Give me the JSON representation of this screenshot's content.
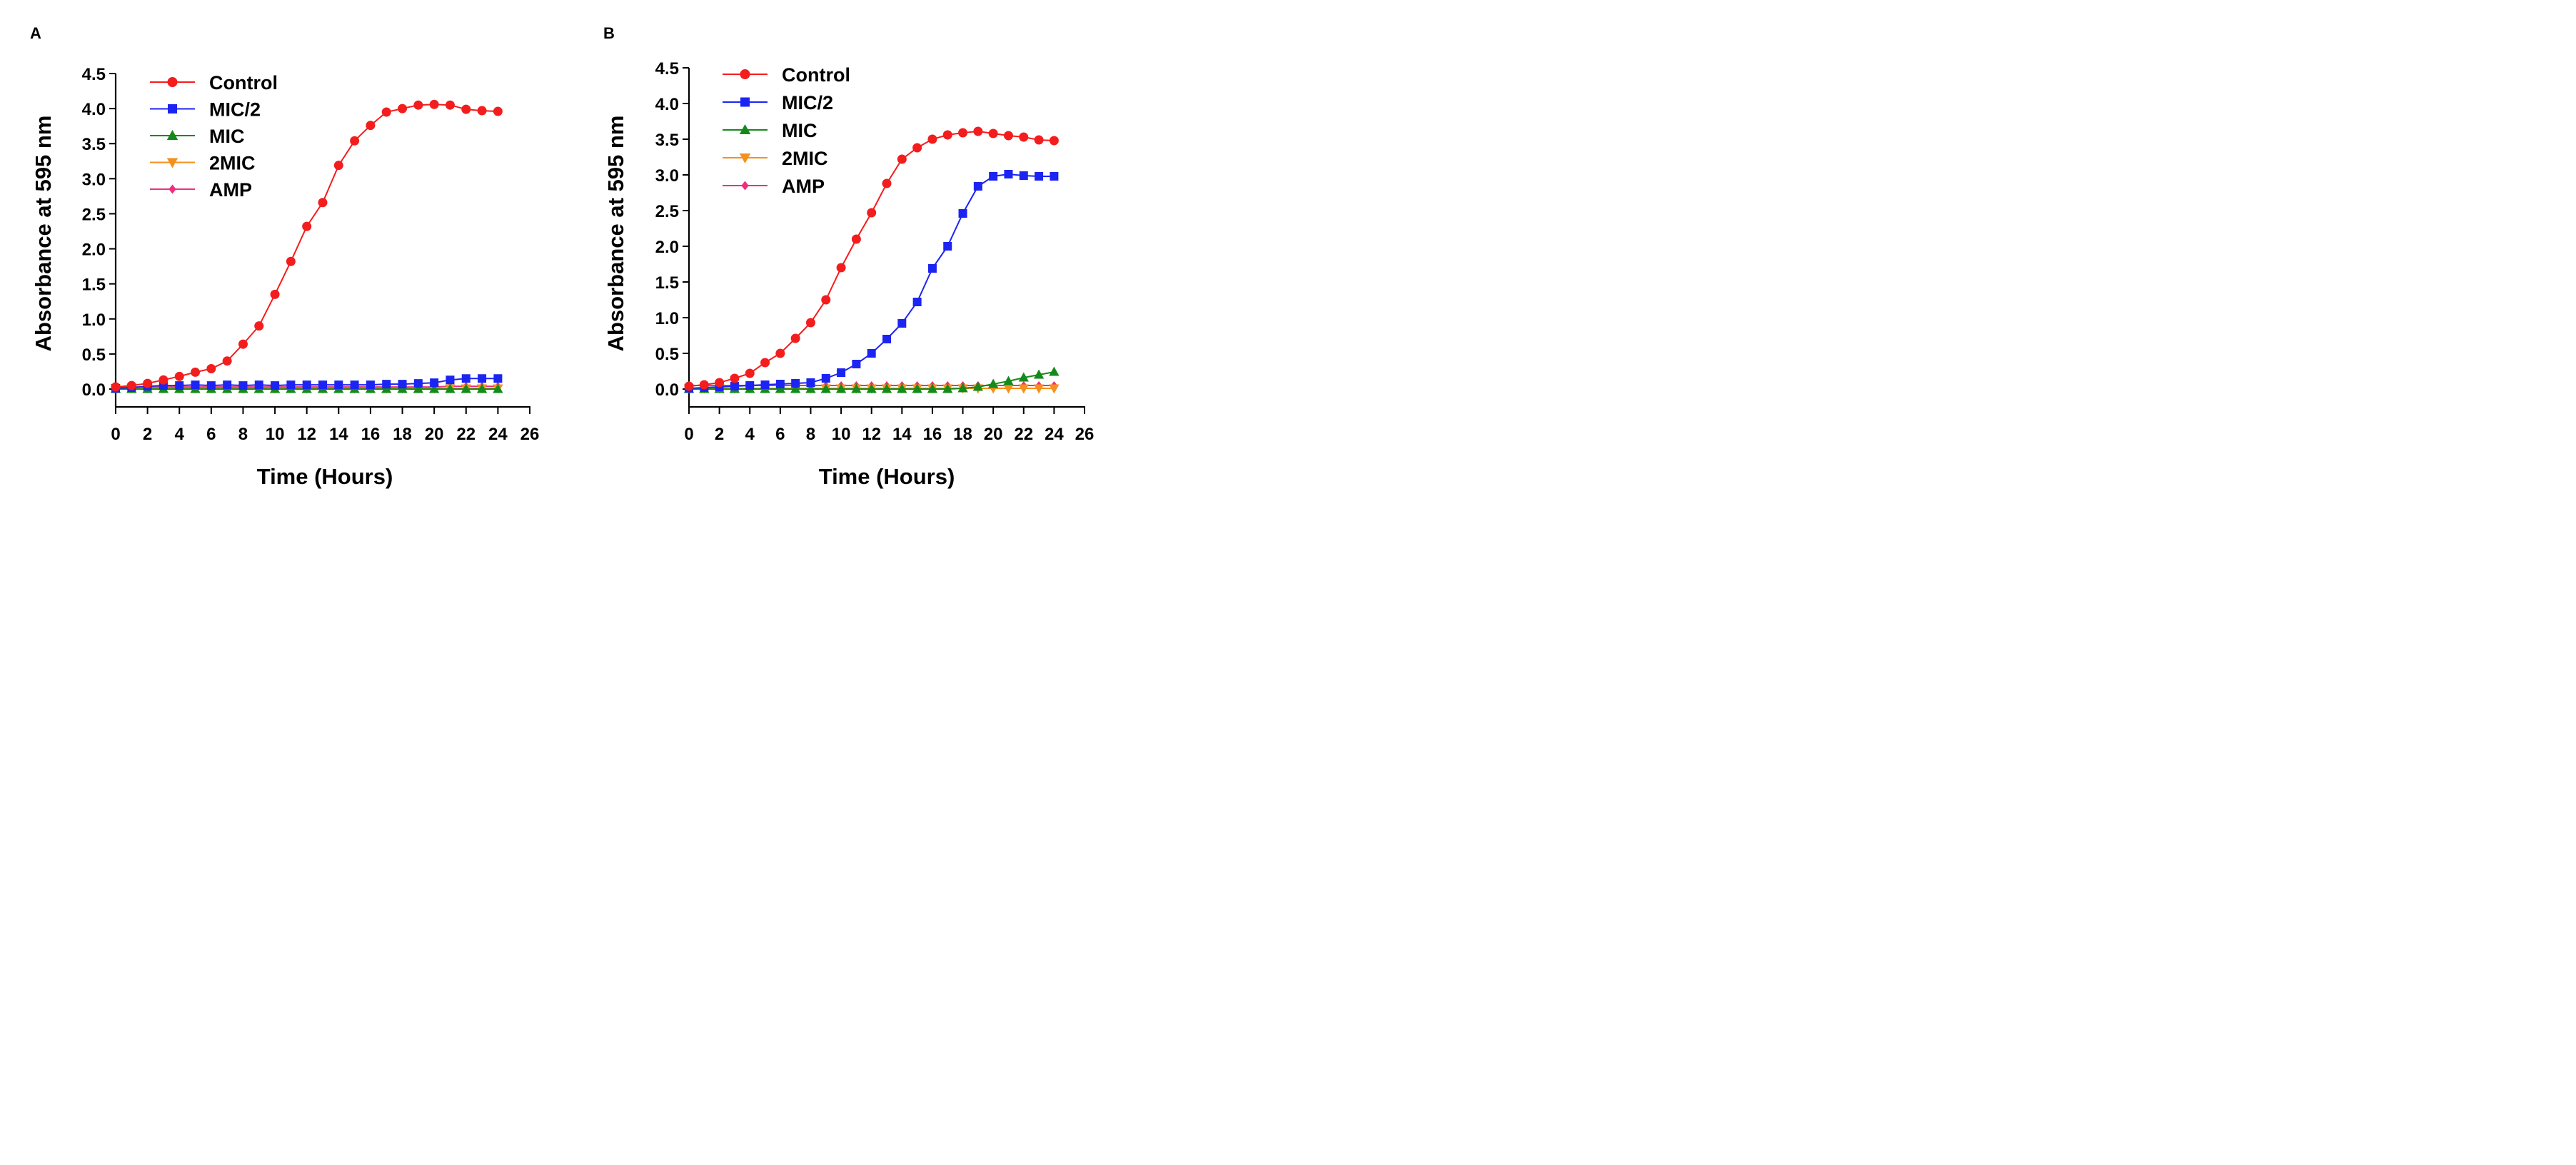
{
  "colors": {
    "Control": "#f31d1d",
    "MIC/2": "#1c24f2",
    "MIC": "#158a1a",
    "2MIC": "#f4911e",
    "AMP": "#ee2f7e",
    "axis": "#000000"
  },
  "chart_data": [
    {
      "panel": "A",
      "type": "line",
      "title": "",
      "xlabel": "Time (Hours)",
      "ylabel": "Absorbance at 595 nm",
      "xlim": [
        0,
        26
      ],
      "ylim": [
        0,
        4.5
      ],
      "xticks": [
        0,
        2,
        4,
        6,
        8,
        10,
        12,
        14,
        16,
        18,
        20,
        22,
        24,
        26
      ],
      "yticks": [
        "0.0",
        "0.5",
        "1.0",
        "1.5",
        "2.0",
        "2.5",
        "3.0",
        "3.5",
        "4.0",
        "4.5"
      ],
      "legend": "top-left",
      "grid": false,
      "x": [
        0,
        1,
        2,
        3,
        4,
        5,
        6,
        7,
        8,
        9,
        10,
        11,
        12,
        13,
        14,
        15,
        16,
        17,
        18,
        19,
        20,
        21,
        22,
        23,
        24
      ],
      "series": [
        {
          "name": "Control",
          "marker": "circle",
          "values": [
            0.03,
            0.05,
            0.08,
            0.13,
            0.18,
            0.24,
            0.29,
            0.4,
            0.64,
            0.9,
            1.35,
            1.82,
            2.32,
            2.66,
            3.19,
            3.54,
            3.76,
            3.95,
            4.0,
            4.05,
            4.06,
            4.05,
            3.99,
            3.97,
            3.96
          ]
        },
        {
          "name": "MIC/2",
          "marker": "square",
          "values": [
            0.01,
            0.02,
            0.04,
            0.05,
            0.05,
            0.06,
            0.05,
            0.06,
            0.05,
            0.06,
            0.05,
            0.06,
            0.06,
            0.06,
            0.06,
            0.06,
            0.06,
            0.07,
            0.07,
            0.08,
            0.09,
            0.13,
            0.15,
            0.15,
            0.15
          ]
        },
        {
          "name": "MIC",
          "marker": "triangle",
          "values": [
            0.0,
            0.0,
            0.0,
            0.0,
            0.0,
            0.0,
            0.0,
            0.0,
            0.0,
            0.0,
            0.0,
            0.0,
            0.0,
            0.0,
            0.0,
            0.0,
            0.0,
            0.0,
            0.0,
            0.0,
            0.0,
            0.0,
            0.0,
            0.0,
            0.0
          ]
        },
        {
          "name": "2MIC",
          "marker": "triangle-down",
          "values": [
            0.01,
            0.01,
            0.01,
            0.01,
            0.01,
            0.01,
            0.01,
            0.01,
            0.01,
            0.01,
            0.01,
            0.01,
            0.01,
            0.01,
            0.01,
            0.01,
            0.01,
            0.01,
            0.01,
            0.01,
            0.01,
            0.01,
            0.01,
            0.01,
            0.01
          ]
        },
        {
          "name": "AMP",
          "marker": "diamond",
          "values": [
            0.03,
            0.03,
            0.03,
            0.03,
            0.03,
            0.03,
            0.03,
            0.03,
            0.03,
            0.03,
            0.03,
            0.03,
            0.03,
            0.03,
            0.03,
            0.03,
            0.03,
            0.03,
            0.03,
            0.03,
            0.03,
            0.04,
            0.04,
            0.04,
            0.04
          ]
        }
      ]
    },
    {
      "panel": "B",
      "type": "line",
      "title": "",
      "xlabel": "Time (Hours)",
      "ylabel": "Absorbance at 595 nm",
      "xlim": [
        0,
        26
      ],
      "ylim": [
        0,
        4.5
      ],
      "xticks": [
        0,
        2,
        4,
        6,
        8,
        10,
        12,
        14,
        16,
        18,
        20,
        22,
        24,
        26
      ],
      "yticks": [
        "0.0",
        "0.5",
        "1.0",
        "1.5",
        "2.0",
        "2.5",
        "3.0",
        "3.5",
        "4.0",
        "4.5"
      ],
      "legend": "top-left",
      "grid": false,
      "x": [
        0,
        1,
        2,
        3,
        4,
        5,
        6,
        7,
        8,
        9,
        10,
        11,
        12,
        13,
        14,
        15,
        16,
        17,
        18,
        19,
        20,
        21,
        22,
        23,
        24
      ],
      "series": [
        {
          "name": "Control",
          "marker": "circle",
          "values": [
            0.04,
            0.06,
            0.09,
            0.15,
            0.22,
            0.37,
            0.5,
            0.71,
            0.93,
            1.25,
            1.7,
            2.1,
            2.47,
            2.88,
            3.22,
            3.38,
            3.5,
            3.56,
            3.59,
            3.61,
            3.58,
            3.55,
            3.53,
            3.49,
            3.48
          ]
        },
        {
          "name": "MIC/2",
          "marker": "square",
          "values": [
            0.01,
            0.02,
            0.03,
            0.04,
            0.05,
            0.06,
            0.07,
            0.08,
            0.09,
            0.15,
            0.23,
            0.35,
            0.5,
            0.7,
            0.92,
            1.22,
            1.69,
            2.0,
            2.46,
            2.84,
            2.98,
            3.01,
            2.99,
            2.98,
            2.98
          ]
        },
        {
          "name": "MIC",
          "marker": "triangle",
          "values": [
            0.0,
            0.0,
            0.0,
            0.0,
            0.0,
            0.0,
            0.0,
            0.0,
            0.0,
            0.0,
            0.0,
            0.0,
            0.0,
            0.0,
            0.0,
            0.0,
            0.0,
            0.0,
            0.01,
            0.03,
            0.07,
            0.11,
            0.16,
            0.2,
            0.24
          ]
        },
        {
          "name": "2MIC",
          "marker": "triangle-down",
          "values": [
            0.01,
            0.01,
            0.01,
            0.01,
            0.01,
            0.01,
            0.01,
            0.01,
            0.01,
            0.01,
            0.01,
            0.01,
            0.01,
            0.01,
            0.01,
            0.01,
            0.01,
            0.01,
            0.01,
            0.01,
            0.01,
            0.01,
            0.01,
            0.01,
            0.01
          ]
        },
        {
          "name": "AMP",
          "marker": "diamond",
          "values": [
            0.05,
            0.05,
            0.05,
            0.05,
            0.05,
            0.05,
            0.05,
            0.05,
            0.05,
            0.05,
            0.05,
            0.05,
            0.05,
            0.05,
            0.05,
            0.05,
            0.05,
            0.05,
            0.05,
            0.05,
            0.05,
            0.05,
            0.05,
            0.05,
            0.05
          ]
        }
      ]
    }
  ]
}
